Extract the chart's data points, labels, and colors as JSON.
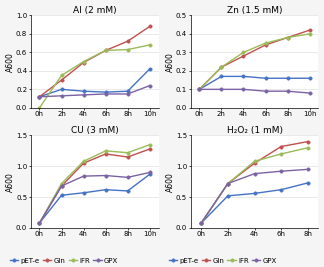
{
  "subplots": [
    {
      "title": "Al (2 mM)",
      "ylabel": "A600",
      "xticks": [
        "0h",
        "2h",
        "4h",
        "6h",
        "8h",
        "10h"
      ],
      "ylim": [
        0,
        1.0
      ],
      "yticks": [
        0,
        0.2,
        0.4,
        0.6,
        0.8,
        1.0
      ],
      "series": {
        "pET-e": [
          0.12,
          0.2,
          0.18,
          0.17,
          0.18,
          0.42
        ],
        "Gln": [
          0.12,
          0.3,
          0.49,
          0.62,
          0.72,
          0.88
        ],
        "IFR": [
          0.0,
          0.35,
          0.5,
          0.62,
          0.63,
          0.68
        ],
        "GPX": [
          0.12,
          0.13,
          0.14,
          0.15,
          0.15,
          0.24
        ]
      }
    },
    {
      "title": "Zn (1.5 mM)",
      "ylabel": "A600",
      "xticks": [
        "0h",
        "2h",
        "4h",
        "6h",
        "8h",
        "10h"
      ],
      "ylim": [
        0,
        0.5
      ],
      "yticks": [
        0,
        0.1,
        0.2,
        0.3,
        0.4,
        0.5
      ],
      "series": {
        "pET-e": [
          0.1,
          0.17,
          0.17,
          0.16,
          0.16,
          0.16
        ],
        "Gln": [
          0.1,
          0.22,
          0.28,
          0.34,
          0.38,
          0.42
        ],
        "IFR": [
          0.1,
          0.22,
          0.3,
          0.35,
          0.38,
          0.4
        ],
        "GPX": [
          0.1,
          0.1,
          0.1,
          0.09,
          0.09,
          0.08
        ]
      }
    },
    {
      "title": "CU (3 mM)",
      "ylabel": "A600",
      "xticks": [
        "0h",
        "2h",
        "4h",
        "6h",
        "8h",
        "10h"
      ],
      "ylim": [
        0,
        1.5
      ],
      "yticks": [
        0,
        0.5,
        1.0,
        1.5
      ],
      "series": {
        "pET-e": [
          0.08,
          0.53,
          0.57,
          0.62,
          0.6,
          0.87
        ],
        "Gln": [
          0.08,
          0.68,
          1.05,
          1.2,
          1.15,
          1.28
        ],
        "IFR": [
          0.08,
          0.72,
          1.08,
          1.25,
          1.22,
          1.35
        ],
        "GPX": [
          0.08,
          0.68,
          0.84,
          0.85,
          0.82,
          0.9
        ]
      }
    },
    {
      "title": "H₂O₂ (1 mM)",
      "ylabel": "A600",
      "xticks": [
        "0h",
        "2h",
        "4h",
        "6h",
        "8h"
      ],
      "ylim": [
        0,
        1.5
      ],
      "yticks": [
        0,
        0.5,
        1.0,
        1.5
      ],
      "series": {
        "pET-e": [
          0.08,
          0.52,
          0.56,
          0.62,
          0.73
        ],
        "Gln": [
          0.08,
          0.72,
          1.05,
          1.32,
          1.4
        ],
        "IFR": [
          0.08,
          0.72,
          1.08,
          1.2,
          1.3
        ],
        "GPX": [
          0.08,
          0.72,
          0.88,
          0.92,
          0.95
        ]
      }
    }
  ],
  "colors": {
    "pET-e": "#4472C4",
    "Gln": "#C0504D",
    "IFR": "#9BBB59",
    "GPX": "#7B62A4"
  },
  "legend_labels": [
    "pET-e",
    "Gln",
    "IFR",
    "GPX"
  ],
  "marker": "o",
  "linewidth": 1.0,
  "markersize": 2.5,
  "background_color": "#f5f5f5",
  "plot_bg": "#ffffff",
  "grid_color": "#d8d8d8",
  "title_fontsize": 6.5,
  "label_fontsize": 5.5,
  "tick_fontsize": 5.0,
  "legend_fontsize": 5.0
}
